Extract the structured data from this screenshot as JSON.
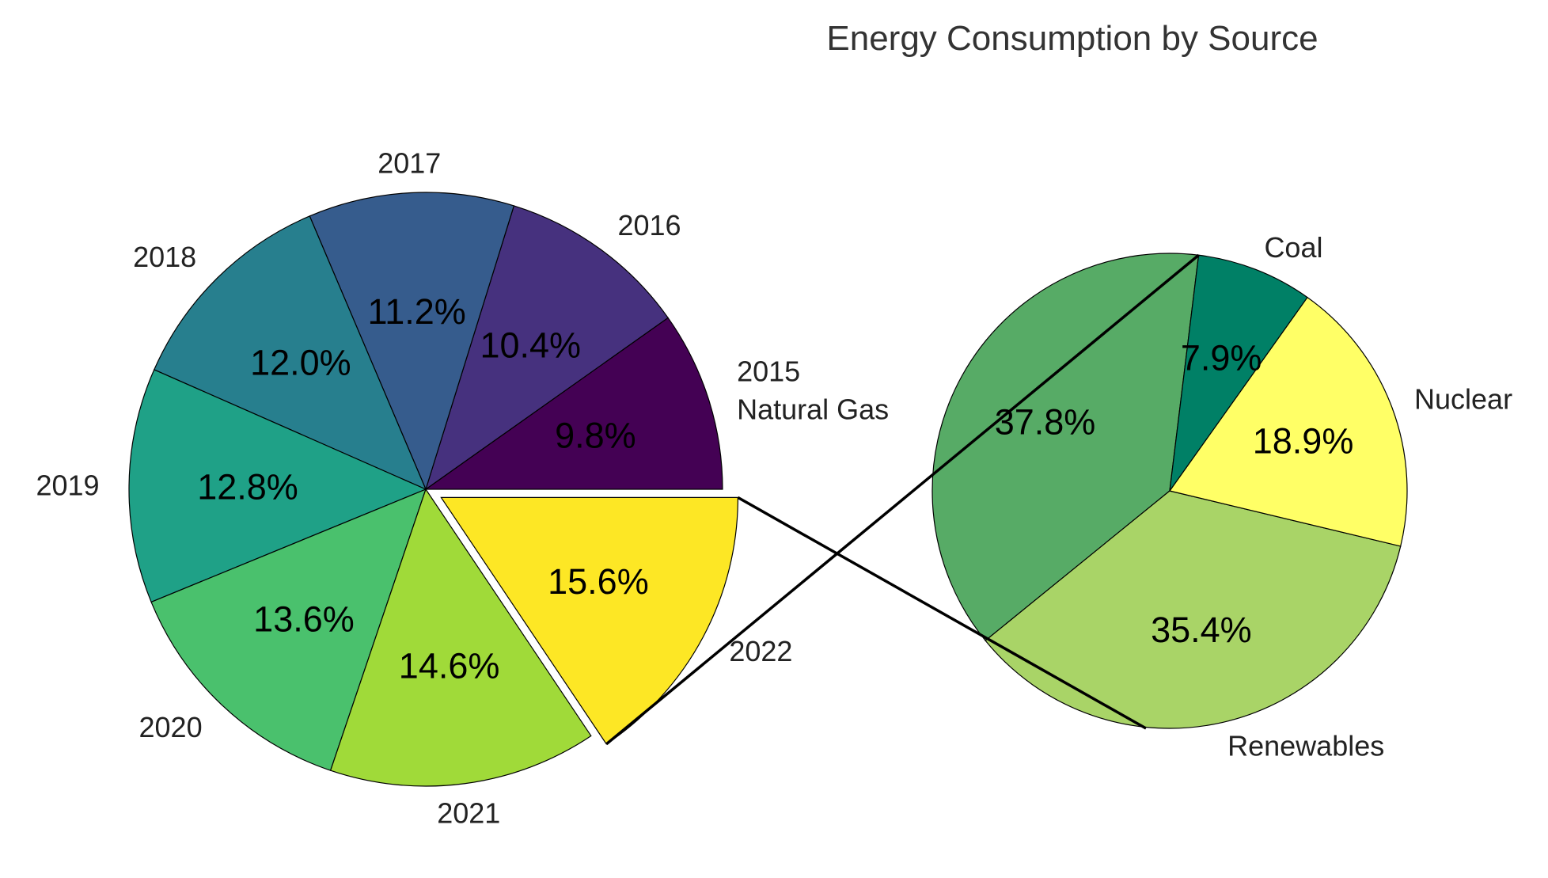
{
  "chart_data": [
    {
      "type": "pie",
      "title": "Energy Consumption by Source",
      "slices": [
        {
          "label": "2015",
          "value": 9.8,
          "pct_label": "9.8%",
          "color": "#440154"
        },
        {
          "label": "2016",
          "value": 10.4,
          "pct_label": "10.4%",
          "color": "#46317e"
        },
        {
          "label": "2017",
          "value": 11.2,
          "pct_label": "11.2%",
          "color": "#365c8d"
        },
        {
          "label": "2018",
          "value": 12.0,
          "pct_label": "12.0%",
          "color": "#277f8e"
        },
        {
          "label": "2019",
          "value": 12.8,
          "pct_label": "12.8%",
          "color": "#1fa187"
        },
        {
          "label": "2020",
          "value": 13.6,
          "pct_label": "13.6%",
          "color": "#4ac16d"
        },
        {
          "label": "2021",
          "value": 14.6,
          "pct_label": "14.6%",
          "color": "#a0da39"
        },
        {
          "label": "2022",
          "value": 15.6,
          "pct_label": "15.6%",
          "color": "#fde725",
          "exploded": true
        }
      ],
      "start_angle_deg": 0,
      "direction": "counterclockwise"
    },
    {
      "type": "pie",
      "title": "",
      "slices": [
        {
          "label": "Natural Gas",
          "value": 37.8,
          "pct_label": "37.8%",
          "color": "#57ab66"
        },
        {
          "label": "Renewables",
          "value": 35.4,
          "pct_label": "35.4%",
          "color": "#a9d467"
        },
        {
          "label": "Nuclear",
          "value": 18.9,
          "pct_label": "18.9%",
          "color": "#ffff66"
        },
        {
          "label": "Coal",
          "value": 7.9,
          "pct_label": "7.9%",
          "color": "#008066"
        }
      ],
      "direction": "clockwise",
      "connected_to_slice": "2022"
    }
  ]
}
